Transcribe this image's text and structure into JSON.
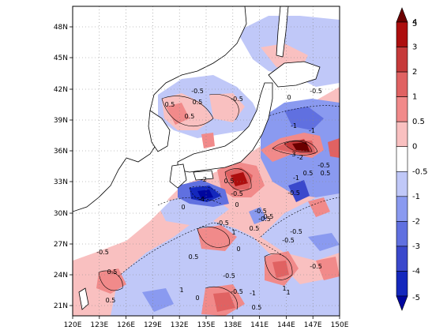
{
  "map": {
    "x_ticks": [
      "120E",
      "123E",
      "126E",
      "129E",
      "132E",
      "135E",
      "138E",
      "141E",
      "144E",
      "147E",
      "150E"
    ],
    "y_ticks": [
      "48N",
      "45N",
      "42N",
      "39N",
      "36N",
      "33N",
      "30N",
      "27N",
      "24N",
      "21N"
    ],
    "lon_range": [
      120,
      150
    ],
    "lat_range": [
      20,
      50
    ],
    "contour_labels": [
      "0.5",
      "0.5",
      "-0.5",
      "-0.5",
      "0.5",
      "0",
      "-1",
      "-0.5",
      "-1",
      "-2",
      "-0.5",
      "0.5",
      "-2",
      "3",
      "0.5",
      "-0.5",
      "-1",
      "-0.5",
      "-4",
      "0",
      "0",
      "-0.5",
      "0.5",
      "-0.5",
      "1",
      "0.5",
      "-0.5",
      "-0.5",
      "-0.5",
      "0",
      "0.5",
      "-0.5",
      "0.5",
      "1",
      "-0.5",
      "-1",
      "0",
      "0.5",
      "1",
      "0.5",
      "-0.5",
      "1",
      "-0.5",
      "0.5"
    ]
  },
  "colorbar": {
    "levels": [
      "5",
      "4",
      "3",
      "2",
      "1",
      "0.5",
      "0",
      "-0.5",
      "-1",
      "-2",
      "-3",
      "-4",
      "-5"
    ],
    "colors": [
      "#6b0000",
      "#ad0e0e",
      "#c63a3a",
      "#e06262",
      "#f18a8a",
      "#f9c0c0",
      "#ffffff",
      "#c0c8f8",
      "#8a9af0",
      "#6070e0",
      "#3a48cc",
      "#1428bd",
      "#00069e"
    ]
  }
}
